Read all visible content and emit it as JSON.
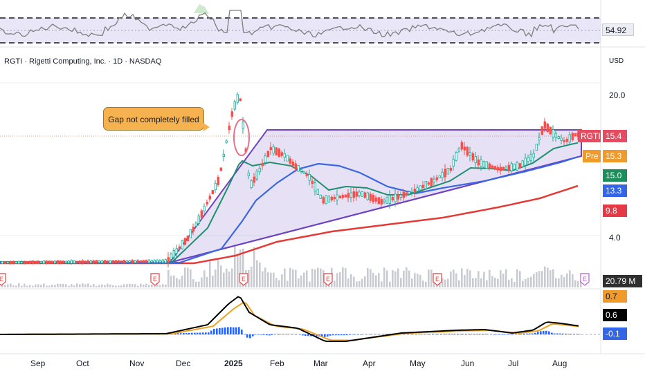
{
  "header": {
    "title": "RGTI · Rigetti Computing, Inc. · 1D · NASDAQ",
    "currency": "USD"
  },
  "annotation": {
    "text": "Gap not completely filled"
  },
  "price_scale": {
    "labels": [
      "20.0",
      "4.0"
    ]
  },
  "tags": {
    "rgti_name": "RGTI",
    "rgti_value": "15.4",
    "pre_name": "Pre",
    "pre_value": "15.3",
    "ma_green": "15.0",
    "ma_blue": "13.3",
    "ma_red": "9.8",
    "rsi_value": "54.92",
    "volume_value": "20.79 M",
    "macd_top": "0.7",
    "macd_mid": "0.6",
    "macd_low": "-0.1"
  },
  "colors": {
    "up": "#26a69a",
    "down": "#ef5350",
    "ma_short": "#1e8f6e",
    "ma_mid": "#3b67e0",
    "ma_long": "#e53935",
    "triangle": "#6f42c1",
    "macd": "#000000",
    "signal": "#f0a01e",
    "hist": "#2962ff",
    "rsi": "#7e7e7e",
    "earnings": "#e04545"
  },
  "x_axis": {
    "labels": [
      "Sep",
      "Oct",
      "Nov",
      "Dec",
      "2025",
      "Feb",
      "Mar",
      "Apr",
      "May",
      "Jun",
      "Jul",
      "Aug"
    ]
  },
  "earnings_markers": [
    "E",
    "E",
    "E",
    "E",
    "E",
    "E"
  ],
  "chart_data": {
    "type": "candlestick",
    "ticker": "RGTI",
    "interval": "1D",
    "x": [
      "Sep",
      "Oct",
      "Nov",
      "Dec",
      "2025",
      "Feb",
      "Mar",
      "Apr",
      "May",
      "Jun",
      "Jul",
      "Aug"
    ],
    "close_approx": [
      0.8,
      0.8,
      1.1,
      2.5,
      12.0,
      12.0,
      9.0,
      8.5,
      10.5,
      11.5,
      13.0,
      15.4
    ],
    "series": [
      {
        "name": "RGTI",
        "last": 15.4
      },
      {
        "name": "Pre",
        "last": 15.3
      }
    ],
    "moving_averages": [
      15.0,
      13.3,
      9.8
    ],
    "rsi_last": 54.92,
    "volume_last": "20.79 M",
    "macd_last": [
      0.7,
      0.6,
      -0.1
    ]
  }
}
